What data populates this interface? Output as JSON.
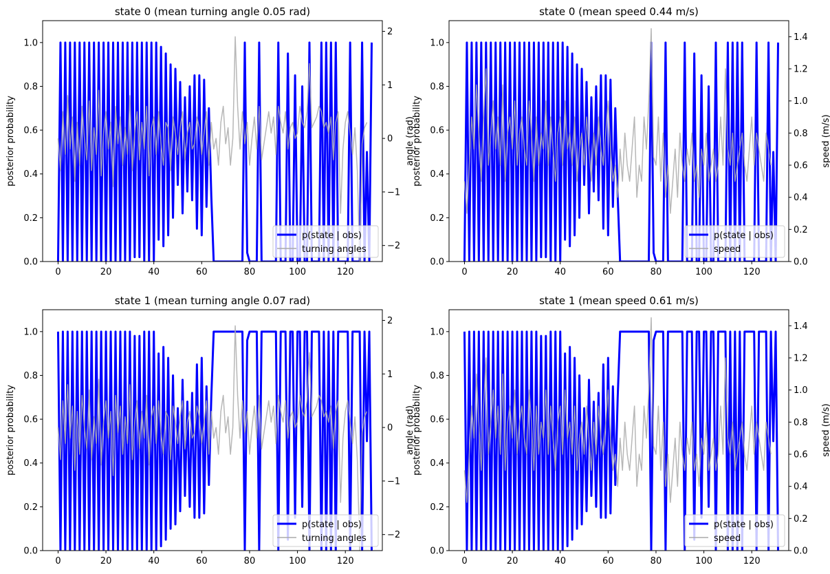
{
  "chart_data": [
    {
      "type": "line",
      "title": "state 0 (mean turning angle 0.05 rad)",
      "xlabel": "",
      "ylabel": "posterior probability",
      "ylabel_right": "angle (rad)",
      "xlim": [
        -6.45,
        135.45
      ],
      "ylim": [
        0,
        1.1
      ],
      "ylim_right": [
        -2.3,
        2.2
      ],
      "xticks": [
        0,
        20,
        40,
        60,
        80,
        100,
        120
      ],
      "yticks": [
        0.0,
        0.2,
        0.4,
        0.6,
        0.8,
        1.0
      ],
      "yticks_right": [
        -2,
        -1,
        0,
        1,
        2
      ],
      "legend_position": "lower-right",
      "posterior_state": 0,
      "secondary_kind": "angle",
      "series": [
        {
          "name": "p(state | obs)",
          "color": "#0000ff",
          "axis": "left"
        },
        {
          "name": "turning angles",
          "color": "#aaaaaa",
          "axis": "right"
        }
      ]
    },
    {
      "type": "line",
      "title": "state 0 (mean speed 0.44 m/s)",
      "xlabel": "",
      "ylabel": "posterior probability",
      "ylabel_right": "speed (m/s)",
      "xlim": [
        -6.45,
        135.45
      ],
      "ylim": [
        0,
        1.1
      ],
      "ylim_right": [
        0,
        1.5
      ],
      "xticks": [
        0,
        20,
        40,
        60,
        80,
        100,
        120
      ],
      "yticks": [
        0.0,
        0.2,
        0.4,
        0.6,
        0.8,
        1.0
      ],
      "yticks_right": [
        0.0,
        0.2,
        0.4,
        0.6,
        0.8,
        1.0,
        1.2,
        1.4
      ],
      "legend_position": "lower-right",
      "posterior_state": 0,
      "secondary_kind": "speed",
      "series": [
        {
          "name": "p(state | obs)",
          "color": "#0000ff",
          "axis": "left"
        },
        {
          "name": "speed",
          "color": "#aaaaaa",
          "axis": "right"
        }
      ]
    },
    {
      "type": "line",
      "title": "state 1 (mean turning angle 0.07 rad)",
      "xlabel": "",
      "ylabel": "posterior probability",
      "ylabel_right": "angle (rad)",
      "xlim": [
        -6.45,
        135.45
      ],
      "ylim": [
        0,
        1.1
      ],
      "ylim_right": [
        -2.3,
        2.2
      ],
      "xticks": [
        0,
        20,
        40,
        60,
        80,
        100,
        120
      ],
      "yticks": [
        0.0,
        0.2,
        0.4,
        0.6,
        0.8,
        1.0
      ],
      "yticks_right": [
        -2,
        -1,
        0,
        1,
        2
      ],
      "legend_position": "lower-right",
      "posterior_state": 1,
      "secondary_kind": "angle",
      "series": [
        {
          "name": "p(state | obs)",
          "color": "#0000ff",
          "axis": "left"
        },
        {
          "name": "turning angles",
          "color": "#aaaaaa",
          "axis": "right"
        }
      ]
    },
    {
      "type": "line",
      "title": "state 1 (mean speed 0.61 m/s)",
      "xlabel": "",
      "ylabel": "posterior probability",
      "ylabel_right": "speed (m/s)",
      "xlim": [
        -6.45,
        135.45
      ],
      "ylim": [
        0,
        1.1
      ],
      "ylim_right": [
        0,
        1.5
      ],
      "xticks": [
        0,
        20,
        40,
        60,
        80,
        100,
        120
      ],
      "yticks": [
        0.0,
        0.2,
        0.4,
        0.6,
        0.8,
        1.0
      ],
      "yticks_right": [
        0.0,
        0.2,
        0.4,
        0.6,
        0.8,
        1.0,
        1.2,
        1.4
      ],
      "legend_position": "lower-right",
      "posterior_state": 1,
      "secondary_kind": "speed",
      "series": [
        {
          "name": "p(state | obs)",
          "color": "#0000ff",
          "axis": "left"
        },
        {
          "name": "speed",
          "color": "#aaaaaa",
          "axis": "right"
        }
      ]
    }
  ],
  "posterior_state0": [
    0,
    1,
    0,
    1,
    0,
    1,
    0,
    1,
    0,
    1,
    0,
    1,
    0,
    1,
    0,
    1,
    0,
    1,
    0,
    1,
    0,
    1,
    0,
    1,
    0,
    1,
    0,
    1,
    0,
    1,
    0,
    1,
    0.02,
    1,
    0.02,
    1,
    0,
    1,
    0,
    1,
    0,
    1,
    0.1,
    0.98,
    0.07,
    0.95,
    0.12,
    0.9,
    0.2,
    0.88,
    0.35,
    0.82,
    0.22,
    0.75,
    0.32,
    0.8,
    0.28,
    0.85,
    0.15,
    0.85,
    0.12,
    0.83,
    0.25,
    0.7,
    0.3,
    0,
    0,
    0,
    0,
    0,
    0,
    0,
    0,
    0,
    0,
    0,
    0,
    0,
    1,
    0.04,
    0,
    0,
    0,
    0,
    1,
    0,
    0,
    0,
    0,
    0,
    0,
    0,
    1,
    0,
    0,
    0,
    0.95,
    0,
    0,
    0.85,
    0,
    0,
    0.8,
    0,
    0,
    1,
    0,
    0,
    0,
    0,
    1,
    0,
    1,
    0,
    1,
    0,
    1,
    0,
    0,
    0,
    0,
    0,
    1,
    0,
    0,
    0,
    0,
    1,
    0,
    0.5,
    0,
    1
  ],
  "angle_series": [
    0,
    -0.6,
    0.5,
    -0.3,
    0.8,
    -0.2,
    0.4,
    -0.8,
    0.3,
    -0.5,
    0.6,
    0,
    -0.4,
    0.7,
    -0.6,
    0.2,
    -0.3,
    0.9,
    -0.7,
    0.1,
    0.5,
    -0.2,
    0.3,
    -0.9,
    0.6,
    -0.1,
    0.4,
    -0.5,
    0.2,
    -0.3,
    0.8,
    -0.6,
    0.1,
    0.5,
    -0.4,
    0.3,
    -0.2,
    0.6,
    -0.7,
    0.2,
    0.4,
    -0.3,
    0.5,
    -0.1,
    -0.5,
    0.3,
    0.2,
    -0.6,
    0.4,
    0.1,
    -0.3,
    0.2,
    0.5,
    -0.4,
    0.1,
    0.3,
    -0.2,
    -0.1,
    0.4,
    0.2,
    -0.3,
    0.1,
    0.5,
    -0.5,
    0.3,
    -0.2,
    0.0,
    -0.5,
    0.3,
    0.6,
    -0.1,
    0.2,
    -0.5,
    0.0,
    1.9,
    0.6,
    -0.2,
    0.5,
    -0.1,
    0.3,
    -0.5,
    0.0,
    0.4,
    -0.2,
    0.6,
    -0.4,
    -0.1,
    0.2,
    0.5,
    0.1,
    0.4,
    -0.3,
    0.6,
    0.3,
    0.1,
    0.5,
    -0.2,
    0.2,
    0.3,
    0.0,
    0.1,
    0.6,
    0.3,
    0.2,
    0.5,
    1.4,
    0.2,
    0.3,
    0.4,
    0.6,
    0.5,
    0.2,
    0.3,
    0.1,
    0.4,
    -0.4,
    0.3,
    0.5,
    -1.4,
    -0.2,
    0.3,
    0.5,
    0.1,
    -0.3,
    0.2,
    -0.6,
    -2.3,
    -0.1,
    0.2,
    0.3
  ],
  "speed_series": [
    0.5,
    0.3,
    0.6,
    0.9,
    0.7,
    1.1,
    0.8,
    0.5,
    0.9,
    1.2,
    0.6,
    0.8,
    1.0,
    0.7,
    0.9,
    0.6,
    1.1,
    0.5,
    0.8,
    0.9,
    0.7,
    1.0,
    0.6,
    0.8,
    0.9,
    0.7,
    0.6,
    1.0,
    0.8,
    0.5,
    0.9,
    0.6,
    0.8,
    0.7,
    1.0,
    0.6,
    0.9,
    0.7,
    0.5,
    0.8,
    0.9,
    0.6,
    1.0,
    0.7,
    0.8,
    0.6,
    0.9,
    0.5,
    0.7,
    0.8,
    0.6,
    0.9,
    0.7,
    0.5,
    0.8,
    0.6,
    0.9,
    0.7,
    0.6,
    0.8,
    1.0,
    0.7,
    0.5,
    0.6,
    0.4,
    0.7,
    0.5,
    0.8,
    0.6,
    0.5,
    0.7,
    0.9,
    0.4,
    0.6,
    0.5,
    0.9,
    0.7,
    1.0,
    1.45,
    0.65,
    0.6,
    0.9,
    0.5,
    0.8,
    0.4,
    0.6,
    0.3,
    0.5,
    0.7,
    0.4,
    0.8,
    0.6,
    0.5,
    0.7,
    0.6,
    0.8,
    0.5,
    0.6,
    0.4,
    0.7,
    0.6,
    0.8,
    0.5,
    0.6,
    0.7,
    0.5,
    0.6,
    0.9,
    0.6,
    1.2,
    0.7,
    0.6,
    0.8,
    0.5,
    0.6,
    0.7,
    0.8,
    0.6,
    0.5,
    0.7,
    0.9,
    0.6,
    0.8,
    0.7,
    0.6,
    0.5,
    0.8,
    0.7,
    0.6
  ]
}
